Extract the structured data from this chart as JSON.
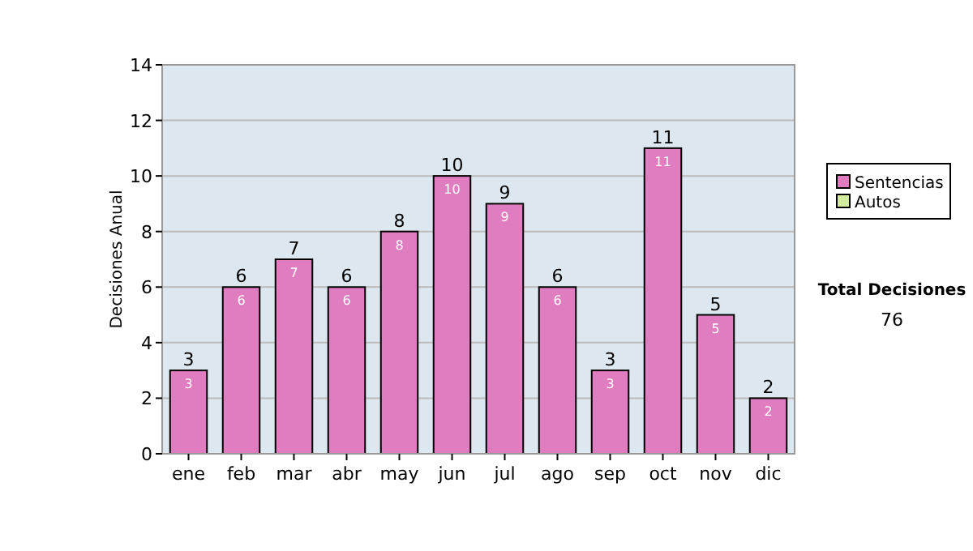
{
  "chart_data": {
    "type": "bar",
    "ylabel": "Decisiones Anual",
    "categories": [
      "ene",
      "feb",
      "mar",
      "abr",
      "may",
      "jun",
      "jul",
      "ago",
      "sep",
      "oct",
      "nov",
      "dic"
    ],
    "series": [
      {
        "name": "Sentencias",
        "color": "#e07cc0",
        "values": [
          3,
          6,
          7,
          6,
          8,
          10,
          9,
          6,
          3,
          11,
          5,
          2
        ]
      },
      {
        "name": "Autos",
        "color": "#d4eca0",
        "values": [
          null,
          null,
          null,
          null,
          null,
          null,
          null,
          null,
          null,
          null,
          null,
          null
        ]
      }
    ],
    "data_labels": true,
    "totals": [
      "3",
      "6",
      "7",
      "6",
      "8",
      "10",
      "9",
      "6",
      "3",
      "11",
      "5",
      "2"
    ],
    "ylim": [
      0,
      14
    ],
    "yticks": [
      0,
      2,
      4,
      6,
      8,
      10,
      12,
      14
    ],
    "grid": "y",
    "legend": "right",
    "annotations": [
      "Total Decisiones",
      "76"
    ]
  }
}
